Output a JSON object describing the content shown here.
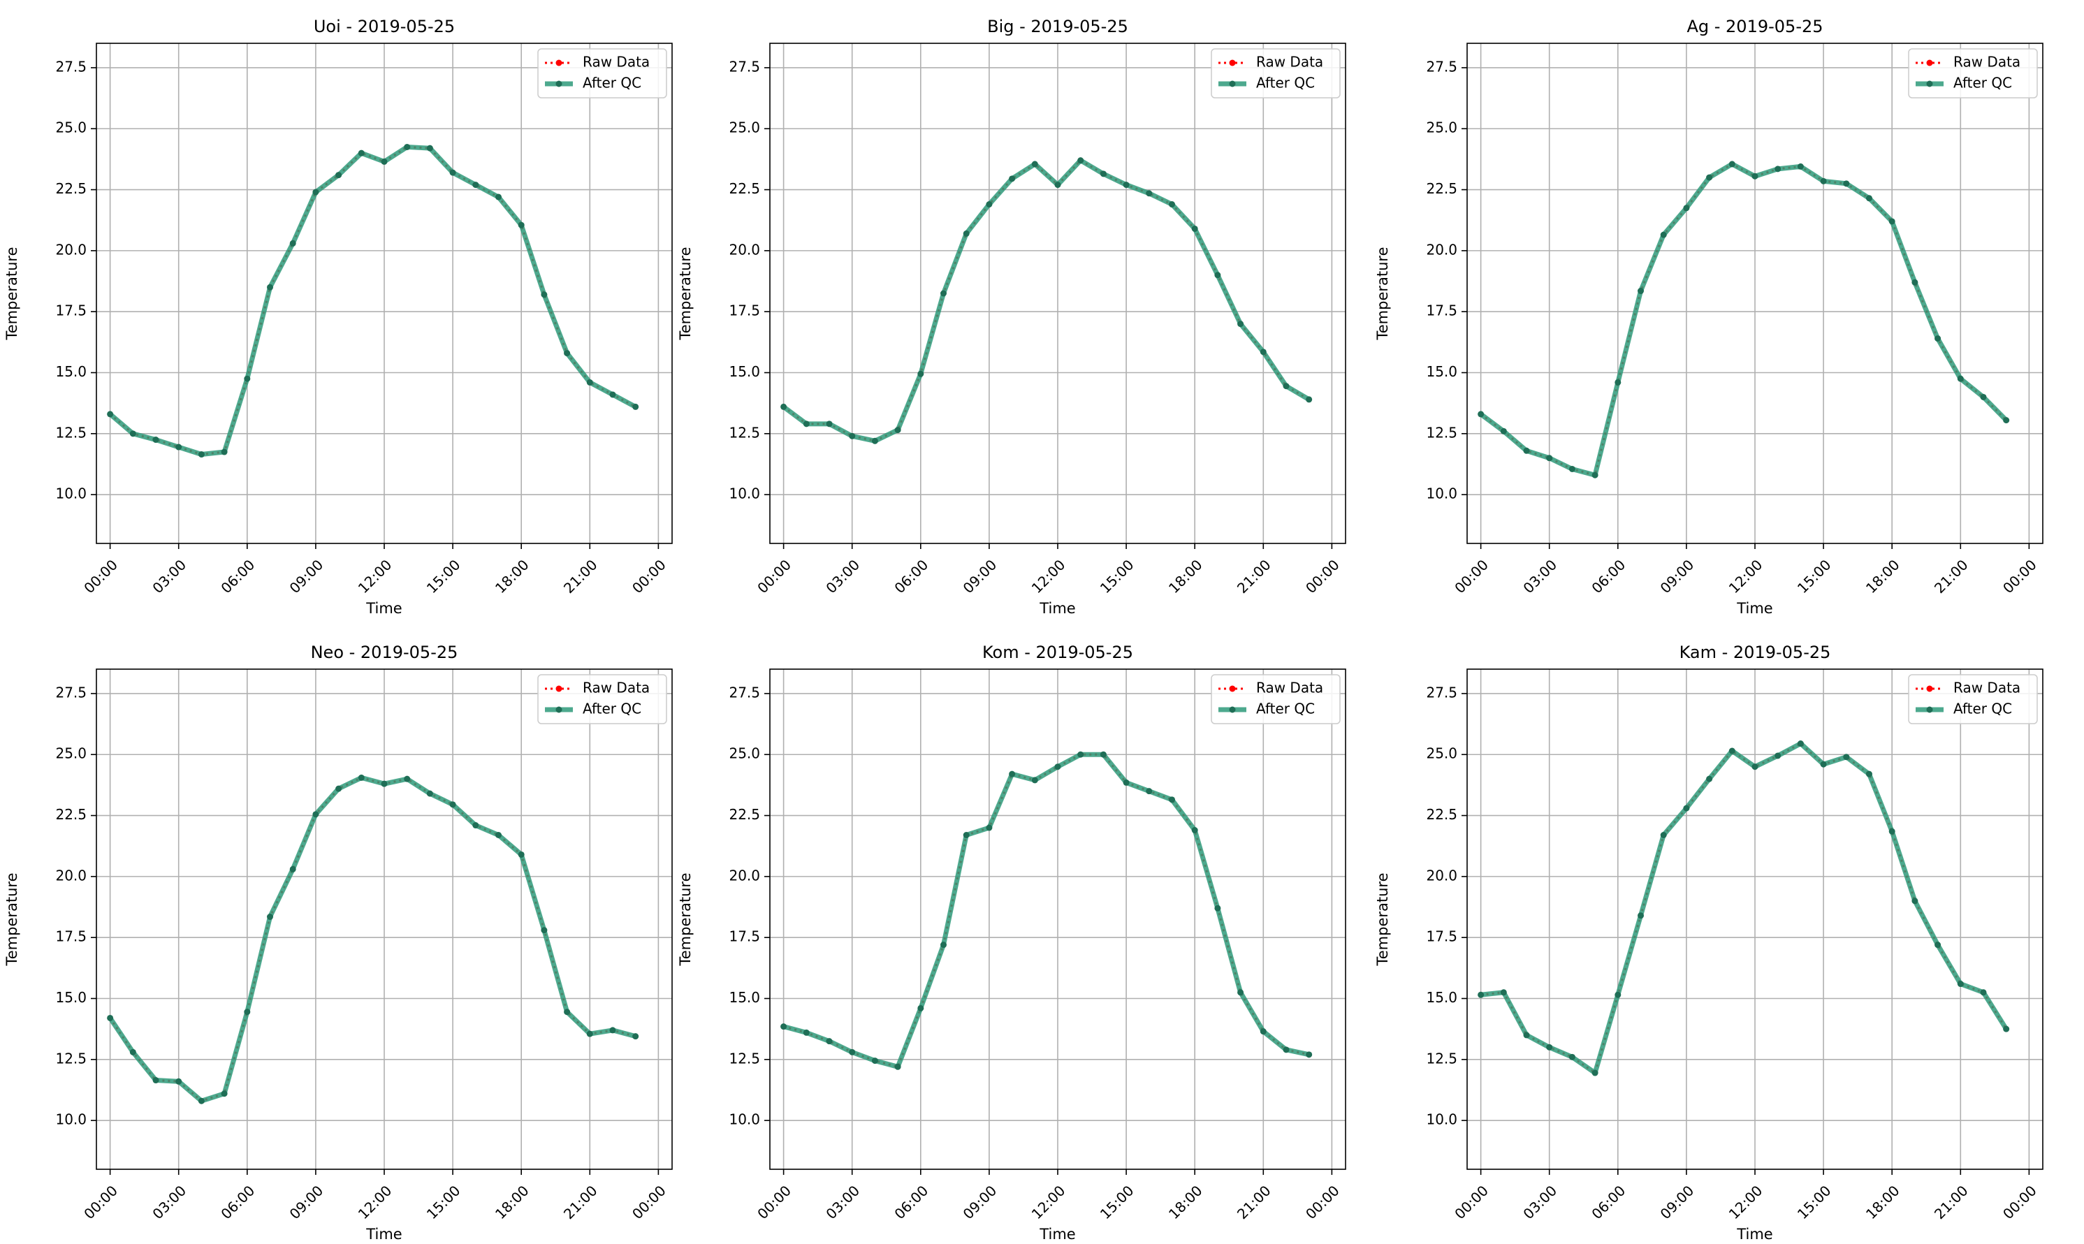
{
  "figure": {
    "legend_labels": {
      "raw": "Raw Data",
      "qc": "After QC"
    },
    "colors": {
      "raw": "#ff0000",
      "qc": "#2e9a7a",
      "qc_marker": "#1f6e56",
      "grid": "#b0b0b0",
      "axis": "#000000"
    }
  },
  "chart_data": [
    {
      "type": "line",
      "title": "Uoi - 2019-05-25",
      "xlabel": "Time",
      "ylabel": "Temperature",
      "xlim": [
        -0.6,
        24.6
      ],
      "ylim": [
        8.0,
        28.5
      ],
      "xticks": [
        0,
        3,
        6,
        9,
        12,
        15,
        18,
        21,
        24
      ],
      "xtick_labels": [
        "00:00",
        "03:00",
        "06:00",
        "09:00",
        "12:00",
        "15:00",
        "18:00",
        "21:00",
        "00:00"
      ],
      "yticks": [
        10.0,
        12.5,
        15.0,
        17.5,
        20.0,
        22.5,
        25.0,
        27.5
      ],
      "ytick_labels": [
        "10.0",
        "12.5",
        "15.0",
        "17.5",
        "20.0",
        "22.5",
        "25.0",
        "27.5"
      ],
      "grid": true,
      "legend": "top-right",
      "x": [
        "00:00",
        "01:00",
        "02:00",
        "03:00",
        "04:00",
        "05:00",
        "06:00",
        "07:00",
        "08:00",
        "09:00",
        "10:00",
        "11:00",
        "12:00",
        "13:00",
        "14:00",
        "15:00",
        "16:00",
        "17:00",
        "18:00",
        "19:00",
        "20:00",
        "21:00",
        "22:00",
        "23:00"
      ],
      "series": [
        {
          "name": "Raw Data",
          "values": [
            13.3,
            12.5,
            12.25,
            11.95,
            11.65,
            11.75,
            14.75,
            18.5,
            20.3,
            22.4,
            23.1,
            24.0,
            23.65,
            24.25,
            24.2,
            23.2,
            22.7,
            22.2,
            21.05,
            18.2,
            15.8,
            14.6,
            14.1,
            13.6
          ]
        },
        {
          "name": "After QC",
          "values": [
            13.3,
            12.5,
            12.25,
            11.95,
            11.65,
            11.75,
            14.75,
            18.5,
            20.3,
            22.4,
            23.1,
            24.0,
            23.65,
            24.25,
            24.2,
            23.2,
            22.7,
            22.2,
            21.05,
            18.2,
            15.8,
            14.6,
            14.1,
            13.6
          ]
        }
      ]
    },
    {
      "type": "line",
      "title": "Big - 2019-05-25",
      "xlabel": "Time",
      "ylabel": "Temperature",
      "xlim": [
        -0.6,
        24.6
      ],
      "ylim": [
        8.0,
        28.5
      ],
      "xticks": [
        0,
        3,
        6,
        9,
        12,
        15,
        18,
        21,
        24
      ],
      "xtick_labels": [
        "00:00",
        "03:00",
        "06:00",
        "09:00",
        "12:00",
        "15:00",
        "18:00",
        "21:00",
        "00:00"
      ],
      "yticks": [
        10.0,
        12.5,
        15.0,
        17.5,
        20.0,
        22.5,
        25.0,
        27.5
      ],
      "ytick_labels": [
        "10.0",
        "12.5",
        "15.0",
        "17.5",
        "20.0",
        "22.5",
        "25.0",
        "27.5"
      ],
      "grid": true,
      "legend": "top-right",
      "x": [
        "00:00",
        "01:00",
        "02:00",
        "03:00",
        "04:00",
        "05:00",
        "06:00",
        "07:00",
        "08:00",
        "09:00",
        "10:00",
        "11:00",
        "12:00",
        "13:00",
        "14:00",
        "15:00",
        "16:00",
        "17:00",
        "18:00",
        "19:00",
        "20:00",
        "21:00",
        "22:00",
        "23:00"
      ],
      "series": [
        {
          "name": "Raw Data",
          "values": [
            13.6,
            12.9,
            12.9,
            12.4,
            12.2,
            12.65,
            14.95,
            18.25,
            20.7,
            21.9,
            22.95,
            23.55,
            22.7,
            23.7,
            23.15,
            22.7,
            22.35,
            21.9,
            20.9,
            19.0,
            17.0,
            15.85,
            14.45,
            13.9
          ]
        },
        {
          "name": "After QC",
          "values": [
            13.6,
            12.9,
            12.9,
            12.4,
            12.2,
            12.65,
            14.95,
            18.25,
            20.7,
            21.9,
            22.95,
            23.55,
            22.7,
            23.7,
            23.15,
            22.7,
            22.35,
            21.9,
            20.9,
            19.0,
            17.0,
            15.85,
            14.45,
            13.9
          ]
        }
      ]
    },
    {
      "type": "line",
      "title": "Ag - 2019-05-25",
      "xlabel": "Time",
      "ylabel": "Temperature",
      "xlim": [
        -0.6,
        24.6
      ],
      "ylim": [
        8.0,
        28.5
      ],
      "xticks": [
        0,
        3,
        6,
        9,
        12,
        15,
        18,
        21,
        24
      ],
      "xtick_labels": [
        "00:00",
        "03:00",
        "06:00",
        "09:00",
        "12:00",
        "15:00",
        "18:00",
        "21:00",
        "00:00"
      ],
      "yticks": [
        10.0,
        12.5,
        15.0,
        17.5,
        20.0,
        22.5,
        25.0,
        27.5
      ],
      "ytick_labels": [
        "10.0",
        "12.5",
        "15.0",
        "17.5",
        "20.0",
        "22.5",
        "25.0",
        "27.5"
      ],
      "grid": true,
      "legend": "top-right",
      "x": [
        "00:00",
        "01:00",
        "02:00",
        "03:00",
        "04:00",
        "05:00",
        "06:00",
        "07:00",
        "08:00",
        "09:00",
        "10:00",
        "11:00",
        "12:00",
        "13:00",
        "14:00",
        "15:00",
        "16:00",
        "17:00",
        "18:00",
        "19:00",
        "20:00",
        "21:00",
        "22:00",
        "23:00"
      ],
      "series": [
        {
          "name": "Raw Data",
          "values": [
            13.3,
            12.6,
            11.8,
            11.5,
            11.05,
            10.8,
            14.6,
            18.35,
            20.65,
            21.75,
            23.0,
            23.55,
            23.05,
            23.35,
            23.45,
            22.85,
            22.75,
            22.15,
            21.2,
            18.7,
            16.4,
            14.75,
            14.0,
            13.05
          ]
        },
        {
          "name": "After QC",
          "values": [
            13.3,
            12.6,
            11.8,
            11.5,
            11.05,
            10.8,
            14.6,
            18.35,
            20.65,
            21.75,
            23.0,
            23.55,
            23.05,
            23.35,
            23.45,
            22.85,
            22.75,
            22.15,
            21.2,
            18.7,
            16.4,
            14.75,
            14.0,
            13.05
          ]
        }
      ]
    },
    {
      "type": "line",
      "title": "Neo - 2019-05-25",
      "xlabel": "Time",
      "ylabel": "Temperature",
      "xlim": [
        -0.6,
        24.6
      ],
      "ylim": [
        8.0,
        28.5
      ],
      "xticks": [
        0,
        3,
        6,
        9,
        12,
        15,
        18,
        21,
        24
      ],
      "xtick_labels": [
        "00:00",
        "03:00",
        "06:00",
        "09:00",
        "12:00",
        "15:00",
        "18:00",
        "21:00",
        "00:00"
      ],
      "yticks": [
        10.0,
        12.5,
        15.0,
        17.5,
        20.0,
        22.5,
        25.0,
        27.5
      ],
      "ytick_labels": [
        "10.0",
        "12.5",
        "15.0",
        "17.5",
        "20.0",
        "22.5",
        "25.0",
        "27.5"
      ],
      "grid": true,
      "legend": "top-right",
      "x": [
        "00:00",
        "01:00",
        "02:00",
        "03:00",
        "04:00",
        "05:00",
        "06:00",
        "07:00",
        "08:00",
        "09:00",
        "10:00",
        "11:00",
        "12:00",
        "13:00",
        "14:00",
        "15:00",
        "16:00",
        "17:00",
        "18:00",
        "19:00",
        "20:00",
        "21:00",
        "22:00",
        "23:00"
      ],
      "series": [
        {
          "name": "Raw Data",
          "values": [
            14.2,
            12.8,
            11.65,
            11.6,
            10.8,
            11.1,
            14.45,
            18.35,
            20.3,
            22.55,
            23.6,
            24.05,
            23.8,
            24.0,
            23.4,
            22.95,
            22.1,
            21.7,
            20.9,
            17.8,
            14.45,
            13.55,
            13.7,
            13.45
          ]
        },
        {
          "name": "After QC",
          "values": [
            14.2,
            12.8,
            11.65,
            11.6,
            10.8,
            11.1,
            14.45,
            18.35,
            20.3,
            22.55,
            23.6,
            24.05,
            23.8,
            24.0,
            23.4,
            22.95,
            22.1,
            21.7,
            20.9,
            17.8,
            14.45,
            13.55,
            13.7,
            13.45
          ]
        }
      ]
    },
    {
      "type": "line",
      "title": "Kom - 2019-05-25",
      "xlabel": "Time",
      "ylabel": "Temperature",
      "xlim": [
        -0.6,
        24.6
      ],
      "ylim": [
        8.0,
        28.5
      ],
      "xticks": [
        0,
        3,
        6,
        9,
        12,
        15,
        18,
        21,
        24
      ],
      "xtick_labels": [
        "00:00",
        "03:00",
        "06:00",
        "09:00",
        "12:00",
        "15:00",
        "18:00",
        "21:00",
        "00:00"
      ],
      "yticks": [
        10.0,
        12.5,
        15.0,
        17.5,
        20.0,
        22.5,
        25.0,
        27.5
      ],
      "ytick_labels": [
        "10.0",
        "12.5",
        "15.0",
        "17.5",
        "20.0",
        "22.5",
        "25.0",
        "27.5"
      ],
      "grid": true,
      "legend": "top-right",
      "x": [
        "00:00",
        "01:00",
        "02:00",
        "03:00",
        "04:00",
        "05:00",
        "06:00",
        "07:00",
        "08:00",
        "09:00",
        "10:00",
        "11:00",
        "12:00",
        "13:00",
        "14:00",
        "15:00",
        "16:00",
        "17:00",
        "18:00",
        "19:00",
        "20:00",
        "21:00",
        "22:00",
        "23:00"
      ],
      "series": [
        {
          "name": "Raw Data",
          "values": [
            13.85,
            13.6,
            13.25,
            12.8,
            12.45,
            12.2,
            14.6,
            17.2,
            21.7,
            22.0,
            24.2,
            23.95,
            24.5,
            25.0,
            25.0,
            23.85,
            23.5,
            23.15,
            21.9,
            18.7,
            15.25,
            13.65,
            12.9,
            12.7
          ]
        },
        {
          "name": "After QC",
          "values": [
            13.85,
            13.6,
            13.25,
            12.8,
            12.45,
            12.2,
            14.6,
            17.2,
            21.7,
            22.0,
            24.2,
            23.95,
            24.5,
            25.0,
            25.0,
            23.85,
            23.5,
            23.15,
            21.9,
            18.7,
            15.25,
            13.65,
            12.9,
            12.7
          ]
        }
      ]
    },
    {
      "type": "line",
      "title": "Kam - 2019-05-25",
      "xlabel": "Time",
      "ylabel": "Temperature",
      "xlim": [
        -0.6,
        24.6
      ],
      "ylim": [
        8.0,
        28.5
      ],
      "xticks": [
        0,
        3,
        6,
        9,
        12,
        15,
        18,
        21,
        24
      ],
      "xtick_labels": [
        "00:00",
        "03:00",
        "06:00",
        "09:00",
        "12:00",
        "15:00",
        "18:00",
        "21:00",
        "00:00"
      ],
      "yticks": [
        10.0,
        12.5,
        15.0,
        17.5,
        20.0,
        22.5,
        25.0,
        27.5
      ],
      "ytick_labels": [
        "10.0",
        "12.5",
        "15.0",
        "17.5",
        "20.0",
        "22.5",
        "25.0",
        "27.5"
      ],
      "grid": true,
      "legend": "top-right",
      "x": [
        "00:00",
        "01:00",
        "02:00",
        "03:00",
        "04:00",
        "05:00",
        "06:00",
        "07:00",
        "08:00",
        "09:00",
        "10:00",
        "11:00",
        "12:00",
        "13:00",
        "14:00",
        "15:00",
        "16:00",
        "17:00",
        "18:00",
        "19:00",
        "20:00",
        "21:00",
        "22:00",
        "23:00"
      ],
      "series": [
        {
          "name": "Raw Data",
          "values": [
            15.15,
            15.25,
            13.5,
            13.0,
            12.6,
            11.95,
            15.15,
            18.4,
            21.7,
            22.8,
            24.0,
            25.15,
            24.5,
            24.95,
            25.45,
            24.6,
            24.9,
            24.2,
            21.85,
            19.0,
            17.2,
            15.6,
            15.25,
            13.75
          ]
        },
        {
          "name": "After QC",
          "values": [
            15.15,
            15.25,
            13.5,
            13.0,
            12.6,
            11.95,
            15.15,
            18.4,
            21.7,
            22.8,
            24.0,
            25.15,
            24.5,
            24.95,
            25.45,
            24.6,
            24.9,
            24.2,
            21.85,
            19.0,
            17.2,
            15.6,
            15.25,
            13.75
          ]
        }
      ]
    }
  ]
}
